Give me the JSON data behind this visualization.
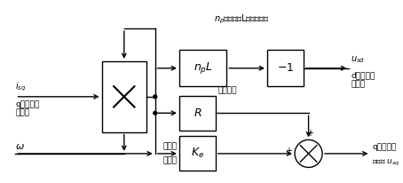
{
  "bg_color": "#ffffff",
  "line_color": "#000000",
  "fig_w": 4.54,
  "fig_h": 2.06,
  "dpi": 100,
  "title": "$n_p$为极对数L为电机电感",
  "isq_label": "$i_{sq}$",
  "isq_sub1": "q坐标系定",
  "isq_sub2": "子电流",
  "omega_label": "$\\omega$",
  "npL_label": "$n_pL$",
  "neg1_label": "$-1$",
  "R_label": "$R$",
  "R_sub": "定子电阻",
  "Ke_label": "$K_e$",
  "Ke_sub1": "电机反",
  "Ke_sub2": "电动势",
  "usd_label": "$u_{sd}$",
  "usd_sub1": "d坐标系定",
  "usd_sub2": "子电压",
  "usq_sub1": "q坐标系定",
  "usq_sub2": "子电压 $u_{sq}$",
  "plus_label": "+",
  "comment_R": "定子电阻"
}
